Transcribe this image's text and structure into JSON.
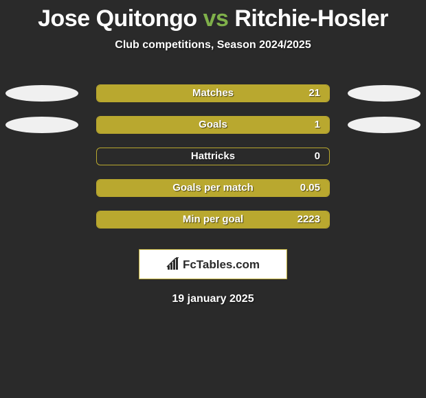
{
  "title": {
    "parts": [
      "Jose Quitongo",
      " vs ",
      "Ritchie-Hosler"
    ],
    "colors": [
      "#ffffff",
      "#7fb04a",
      "#ffffff"
    ]
  },
  "subtitle": "Club competitions, Season 2024/2025",
  "accent_color": "#b9a82f",
  "ellipse_color": "#f0f0f0",
  "background_color": "#2a2a2a",
  "rows": [
    {
      "label": "Matches",
      "value": "21",
      "fill_pct": 100,
      "left_ellipse": true,
      "right_ellipse": true
    },
    {
      "label": "Goals",
      "value": "1",
      "fill_pct": 100,
      "left_ellipse": true,
      "right_ellipse": true
    },
    {
      "label": "Hattricks",
      "value": "0",
      "fill_pct": 0,
      "left_ellipse": false,
      "right_ellipse": false
    },
    {
      "label": "Goals per match",
      "value": "0.05",
      "fill_pct": 100,
      "left_ellipse": false,
      "right_ellipse": false
    },
    {
      "label": "Min per goal",
      "value": "2223",
      "fill_pct": 100,
      "left_ellipse": false,
      "right_ellipse": false
    }
  ],
  "brand": "FcTables.com",
  "date": "19 january 2025"
}
